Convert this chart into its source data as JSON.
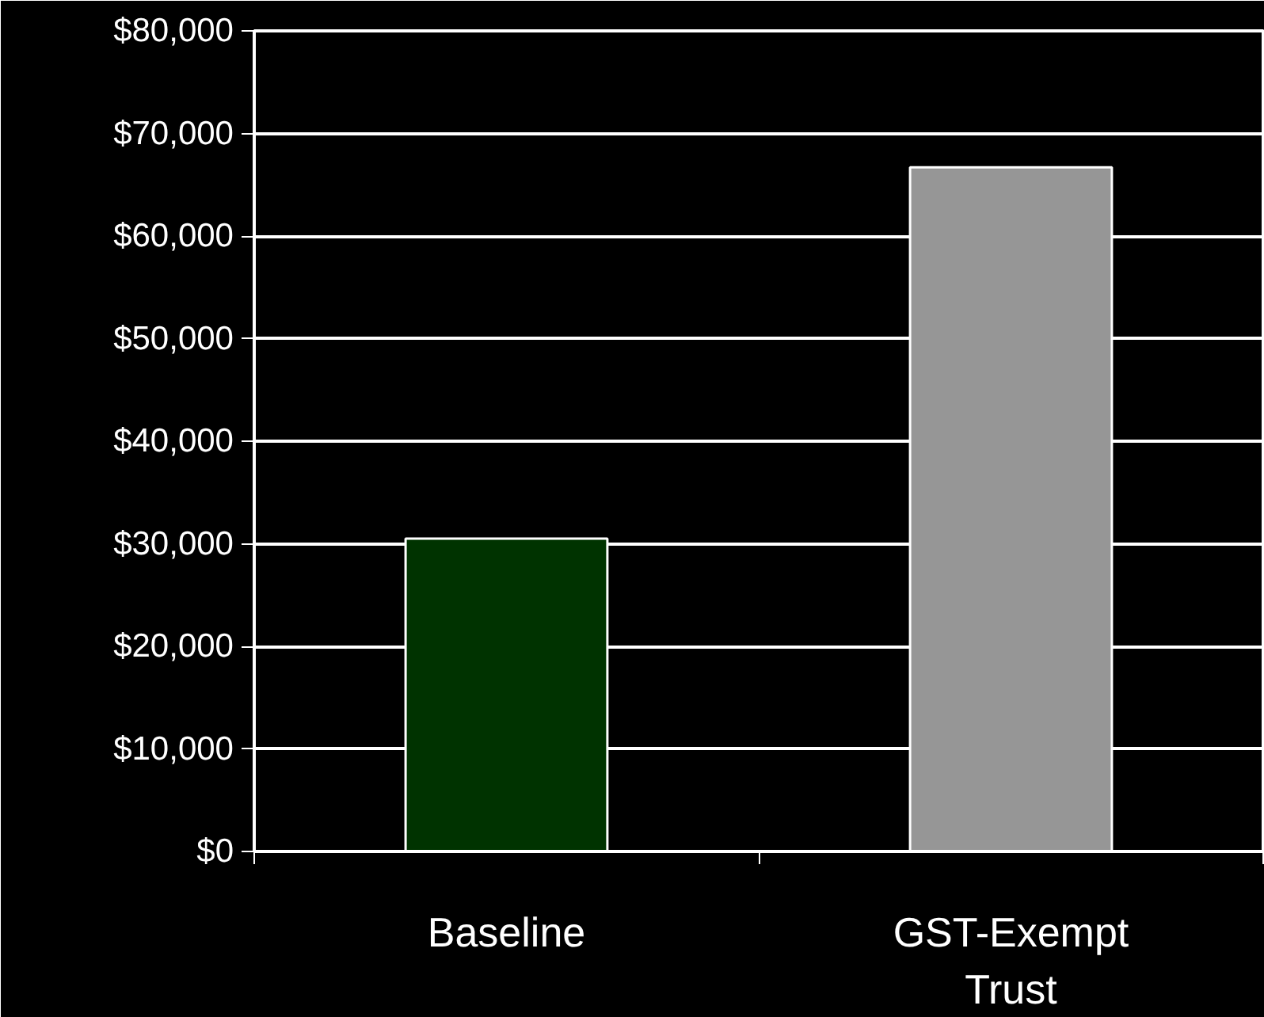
{
  "chart_data": {
    "type": "bar",
    "categories": [
      "Baseline",
      "GST-Exempt Trust"
    ],
    "values": [
      30500,
      66700
    ],
    "colors": [
      "#003300",
      "#969696"
    ],
    "ylim": [
      0,
      80000
    ],
    "yticks": [
      {
        "value": 0,
        "label": "$0"
      },
      {
        "value": 10000,
        "label": "$10,000"
      },
      {
        "value": 20000,
        "label": "$20,000"
      },
      {
        "value": 30000,
        "label": "$30,000"
      },
      {
        "value": 40000,
        "label": "$40,000"
      },
      {
        "value": 50000,
        "label": "$50,000"
      },
      {
        "value": 60000,
        "label": "$60,000"
      },
      {
        "value": 70000,
        "label": "$70,000"
      },
      {
        "value": 80000,
        "label": "$80,000"
      }
    ],
    "grid": "y"
  }
}
